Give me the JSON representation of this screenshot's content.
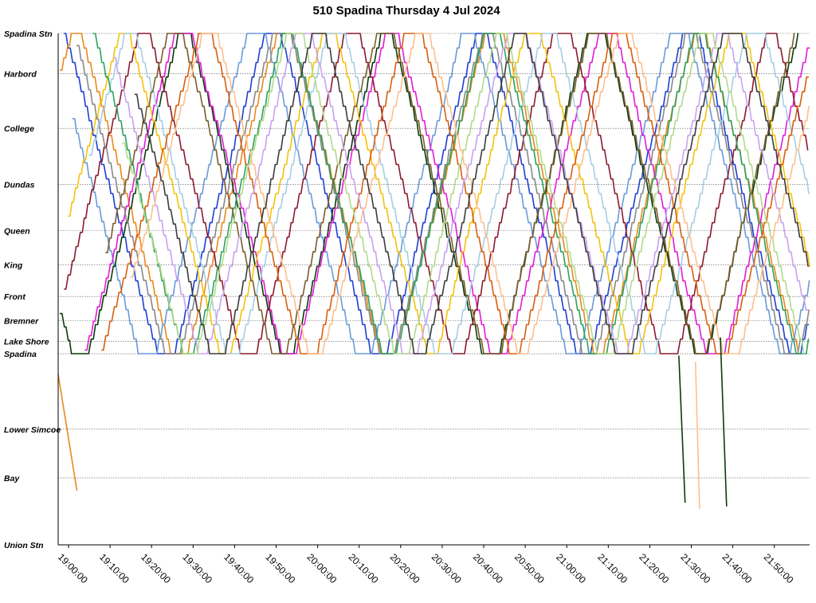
{
  "chart_data": {
    "type": "line",
    "title": "510 Spadina Thursday 4 Jul 2024",
    "x_axis": {
      "unit": "time",
      "min": "18:57:30",
      "max": "21:58:30",
      "tick_labels": [
        "19:00:00",
        "19:10:00",
        "19:20:00",
        "19:30:00",
        "19:40:00",
        "19:50:00",
        "20:00:00",
        "20:10:00",
        "20:20:00",
        "20:30:00",
        "20:40:00",
        "20:50:00",
        "21:00:00",
        "21:10:00",
        "21:20:00",
        "21:30:00",
        "21:40:00",
        "21:50:00"
      ]
    },
    "y_axis": {
      "unit": "km from Spadina Stn",
      "min": 0,
      "max": 4.2,
      "reversed": true,
      "stops": [
        {
          "label": "Spadina Stn",
          "value": 0.0
        },
        {
          "label": "Harbord",
          "value": 0.33
        },
        {
          "label": "College",
          "value": 0.78
        },
        {
          "label": "Dundas",
          "value": 1.24
        },
        {
          "label": "Queen",
          "value": 1.62
        },
        {
          "label": "King",
          "value": 1.9
        },
        {
          "label": "Front",
          "value": 2.16
        },
        {
          "label": "Bremner",
          "value": 2.36
        },
        {
          "label": "Lake Shore",
          "value": 2.53
        },
        {
          "label": "Spadina",
          "value": 2.63
        },
        {
          "label": "Lower Simcoe",
          "value": 3.25
        },
        {
          "label": "Bay",
          "value": 3.65
        },
        {
          "label": "Union Stn",
          "value": 4.2
        }
      ]
    },
    "grid": true,
    "legend": "none",
    "vehicles": [
      {
        "color": "#1f3fd1",
        "starts_at": "18:59:00",
        "start_position": 0.0,
        "starts_southbound": true
      },
      {
        "color": "#e8891e",
        "starts_at": "18:58:00",
        "start_position": 0.3,
        "starts_southbound": false
      },
      {
        "color": "#6a9ad8",
        "starts_at": "19:01:00",
        "start_position": 0.7,
        "starts_southbound": true
      },
      {
        "color": "#0b3b0b",
        "starts_at": "18:58:00",
        "start_position": 2.3,
        "starts_southbound": true
      },
      {
        "color": "#e21cd6",
        "starts_at": "19:04:00",
        "start_position": 2.6,
        "starts_southbound": false
      },
      {
        "color": "#8b1a2f",
        "starts_at": "18:59:00",
        "start_position": 2.1,
        "starts_southbound": false
      },
      {
        "color": "#f4c20d",
        "starts_at": "19:00:00",
        "start_position": 1.5,
        "starts_southbound": false
      },
      {
        "color": "#888888",
        "starts_at": "19:02:00",
        "start_position": 0.1,
        "starts_southbound": true
      },
      {
        "color": "#a6cee3",
        "starts_at": "19:05:00",
        "start_position": 1.0,
        "starts_southbound": false
      },
      {
        "color": "#2ca25f",
        "starts_at": "19:06:00",
        "start_position": 0.0,
        "starts_southbound": true
      },
      {
        "color": "#d95f0e",
        "starts_at": "19:08:00",
        "start_position": 2.6,
        "starts_southbound": false
      },
      {
        "color": "#7a5c2e",
        "starts_at": "19:09:00",
        "start_position": 1.8,
        "starts_southbound": false
      },
      {
        "color": "#c7a3f0",
        "starts_at": "19:11:00",
        "start_position": 0.2,
        "starts_southbound": true
      },
      {
        "color": "#b3d98c",
        "starts_at": "19:13:00",
        "start_position": 0.9,
        "starts_southbound": true
      },
      {
        "color": "#fdbf8e",
        "starts_at": "19:15:00",
        "start_position": 2.0,
        "starts_southbound": false
      },
      {
        "color": "#3c3c3c",
        "starts_at": "19:16:00",
        "start_position": 0.5,
        "starts_southbound": true
      }
    ],
    "excursions": [
      {
        "color": "#e8891e",
        "time_start": "18:57:30",
        "pos_start": 2.8,
        "time_end": "19:02:00",
        "pos_end": 3.75
      },
      {
        "color": "#0b3b0b",
        "time_start": "21:27:00",
        "pos_start": 2.65,
        "time_end": "21:28:30",
        "pos_end": 3.85
      },
      {
        "color": "#fdbf8e",
        "time_start": "21:31:00",
        "pos_start": 2.7,
        "time_end": "21:32:00",
        "pos_end": 3.9
      },
      {
        "color": "#0b3b0b",
        "time_start": "21:37:00",
        "pos_start": 2.5,
        "time_end": "21:38:30",
        "pos_end": 3.88
      }
    ]
  }
}
